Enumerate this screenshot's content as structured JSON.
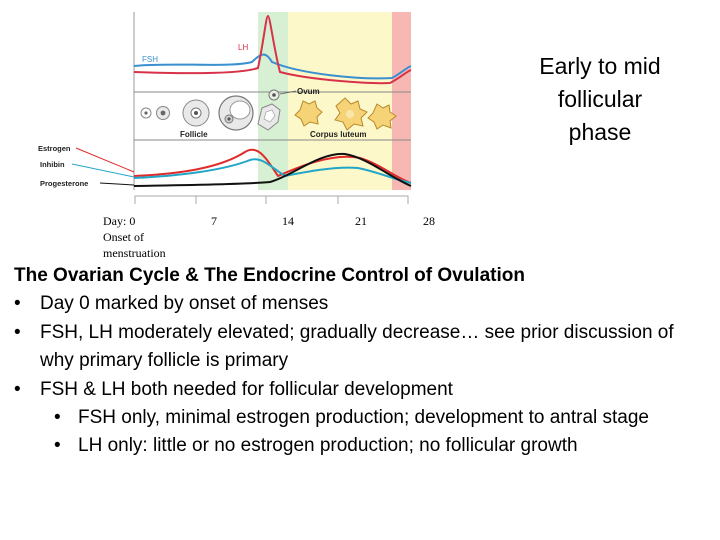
{
  "diagram": {
    "hormone_labels": {
      "fsh": "FSH",
      "lh": "LH",
      "estrogen": "Estrogen",
      "inhibin": "Inhibin",
      "progesterone": "Progesterone"
    },
    "stage_labels": {
      "ovum": "Ovum",
      "follicle": "Follicle",
      "corpus_luteum": "Corpus luteum"
    },
    "colors": {
      "fsh": "#3a8fd0",
      "lh": "#d8324a",
      "estrogen": "#e02b2b",
      "inhibin": "#22a6c8",
      "progesterone": "#111111",
      "early_follicular_band": "#ffffff",
      "ovulation_band": "#d7efd3",
      "luteal_band": "#fdf8c9",
      "menses_band": "#f7b7b2",
      "follicle_fill": "#e9e9ea",
      "corpus_luteum_fill": "#f6d377"
    }
  },
  "days": {
    "d0": "Day: 0",
    "d0_note_1": "Onset of",
    "d0_note_2": "menstruation",
    "d7": "7",
    "d14": "14",
    "d21": "21",
    "d28": "28"
  },
  "phase_title": {
    "line1": "Early to mid",
    "line2": "follicular",
    "line3": "phase"
  },
  "content": {
    "heading": "The Ovarian Cycle & The Endocrine Control of Ovulation",
    "bullets": [
      "Day 0 marked by onset of menses",
      "FSH, LH moderately elevated; gradually decrease… see prior discussion of why primary follicle is primary",
      "FSH & LH both needed for follicular development"
    ],
    "sub_bullets": [
      "FSH only, minimal estrogen production; development to antral stage",
      "LH only: little or no estrogen production; no follicular growth"
    ]
  }
}
